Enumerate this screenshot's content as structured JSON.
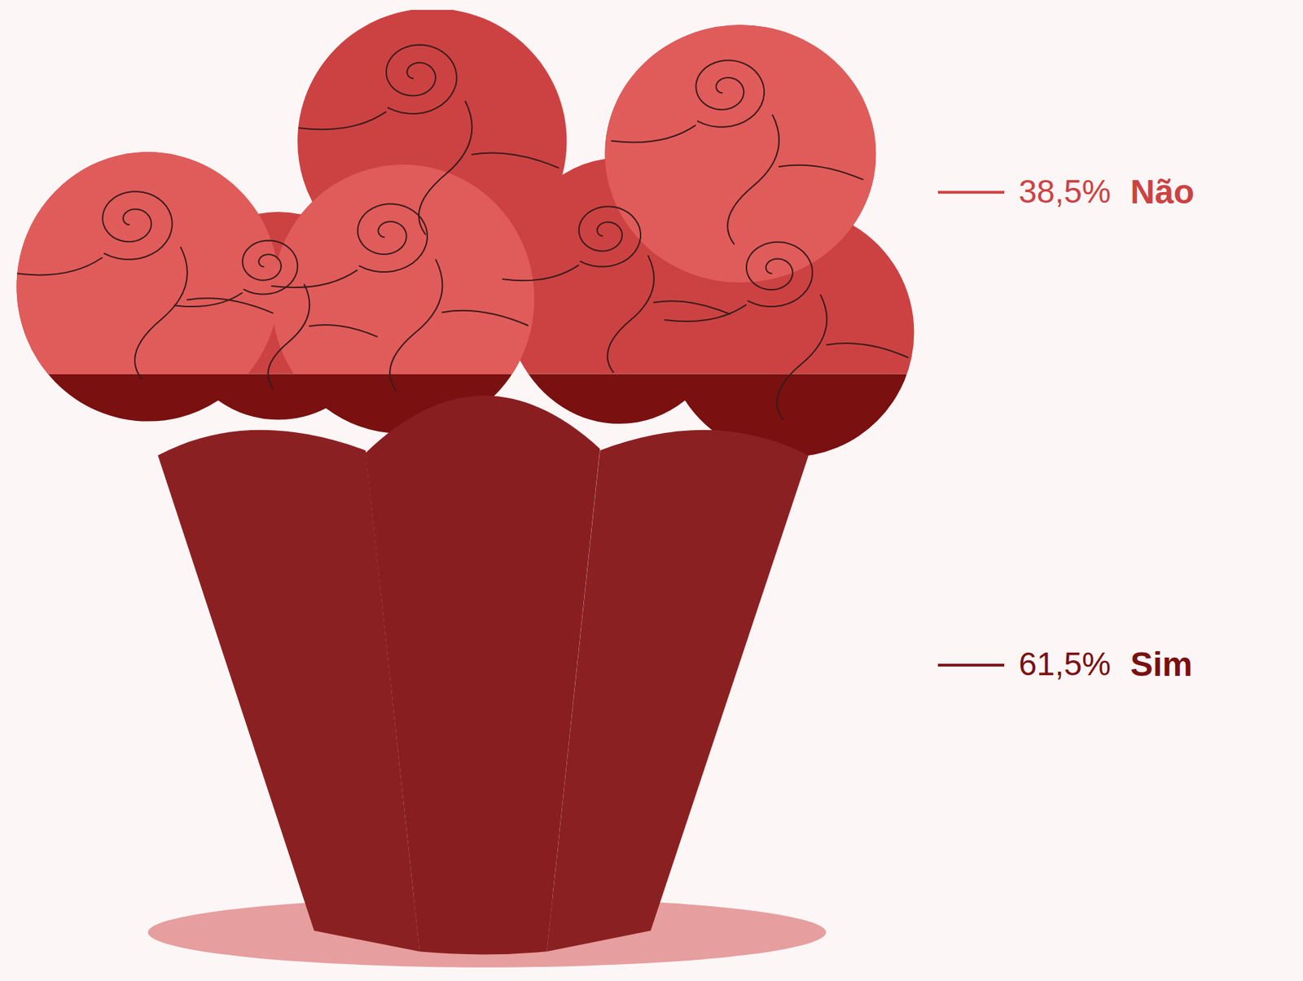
{
  "chart_data": {
    "type": "bar",
    "categories": [
      "Sim",
      "Não"
    ],
    "values": [
      61.5,
      38.5
    ],
    "value_labels": [
      "61,5%",
      "38,5%"
    ],
    "colors": [
      "#7a1010",
      "#cc4242"
    ],
    "ylim": [
      0,
      100
    ],
    "stacked": true,
    "data_labels": true,
    "tick_labels": false
  }
}
